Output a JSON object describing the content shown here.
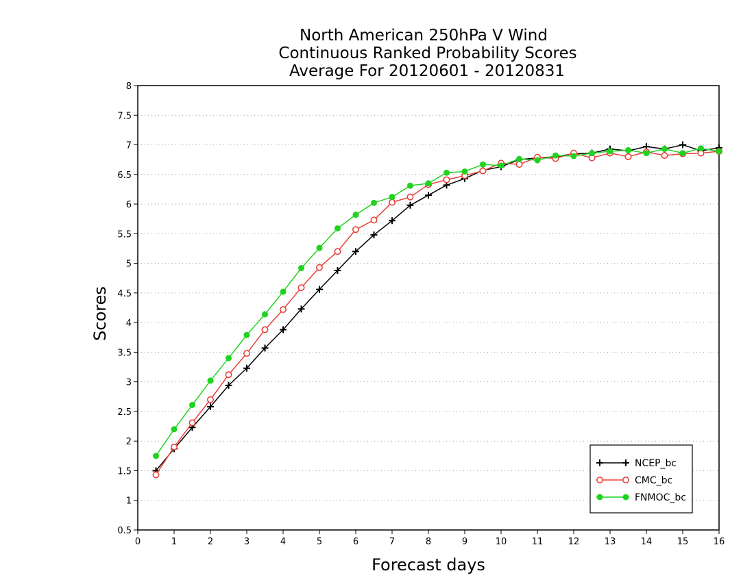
{
  "chart_data": {
    "type": "line",
    "title_lines": [
      "North American 250hPa V Wind",
      "Continuous Ranked Probability Scores",
      "Average For 20120601 - 20120831"
    ],
    "xlabel": "Forecast days",
    "ylabel": "Scores",
    "xlim": [
      0,
      16
    ],
    "ylim": [
      0.5,
      8
    ],
    "x_ticks": [
      "0",
      "1",
      "2",
      "3",
      "4",
      "5",
      "6",
      "7",
      "8",
      "9",
      "10",
      "11",
      "12",
      "13",
      "14",
      "15",
      "16"
    ],
    "y_ticks": [
      "0.5",
      "1",
      "1.5",
      "2",
      "2.5",
      "3",
      "3.5",
      "4",
      "4.5",
      "5",
      "5.5",
      "6",
      "6.5",
      "7",
      "7.5",
      "8"
    ],
    "grid": true,
    "legend_position": "bottom-right",
    "x": [
      0.5,
      1,
      1.5,
      2,
      2.5,
      3,
      3.5,
      4,
      4.5,
      5,
      5.5,
      6,
      6.5,
      7,
      7.5,
      8,
      8.5,
      9,
      9.5,
      10,
      10.5,
      11,
      11.5,
      12,
      12.5,
      13,
      13.5,
      14,
      14.5,
      15,
      15.5,
      16
    ],
    "series": [
      {
        "name": "NCEP_bc",
        "color": "#000000",
        "marker": "plus",
        "values": [
          1.5,
          1.87,
          2.23,
          2.58,
          2.94,
          3.23,
          3.57,
          3.88,
          4.23,
          4.56,
          4.88,
          5.2,
          5.48,
          5.72,
          5.98,
          6.15,
          6.32,
          6.43,
          6.57,
          6.63,
          6.75,
          6.78,
          6.8,
          6.85,
          6.86,
          6.93,
          6.9,
          6.97,
          6.93,
          7.0,
          6.9,
          6.95
        ]
      },
      {
        "name": "CMC_bc",
        "color": "#e8403a",
        "marker": "open-circle",
        "values": [
          1.43,
          1.9,
          2.31,
          2.7,
          3.12,
          3.48,
          3.88,
          4.22,
          4.59,
          4.93,
          5.2,
          5.57,
          5.73,
          6.03,
          6.12,
          6.33,
          6.41,
          6.48,
          6.56,
          6.69,
          6.67,
          6.79,
          6.77,
          6.86,
          6.78,
          6.86,
          6.8,
          6.88,
          6.82,
          6.85,
          6.86,
          6.89
        ]
      },
      {
        "name": "FNMOC_bc",
        "color": "#1fd31f",
        "marker": "filled-circle",
        "values": [
          1.75,
          2.2,
          2.61,
          3.02,
          3.4,
          3.79,
          4.14,
          4.52,
          4.92,
          5.26,
          5.59,
          5.82,
          6.02,
          6.12,
          6.31,
          6.35,
          6.53,
          6.55,
          6.67,
          6.65,
          6.76,
          6.74,
          6.82,
          6.81,
          6.86,
          6.89,
          6.91,
          6.86,
          6.93,
          6.86,
          6.94,
          6.89
        ]
      }
    ]
  }
}
